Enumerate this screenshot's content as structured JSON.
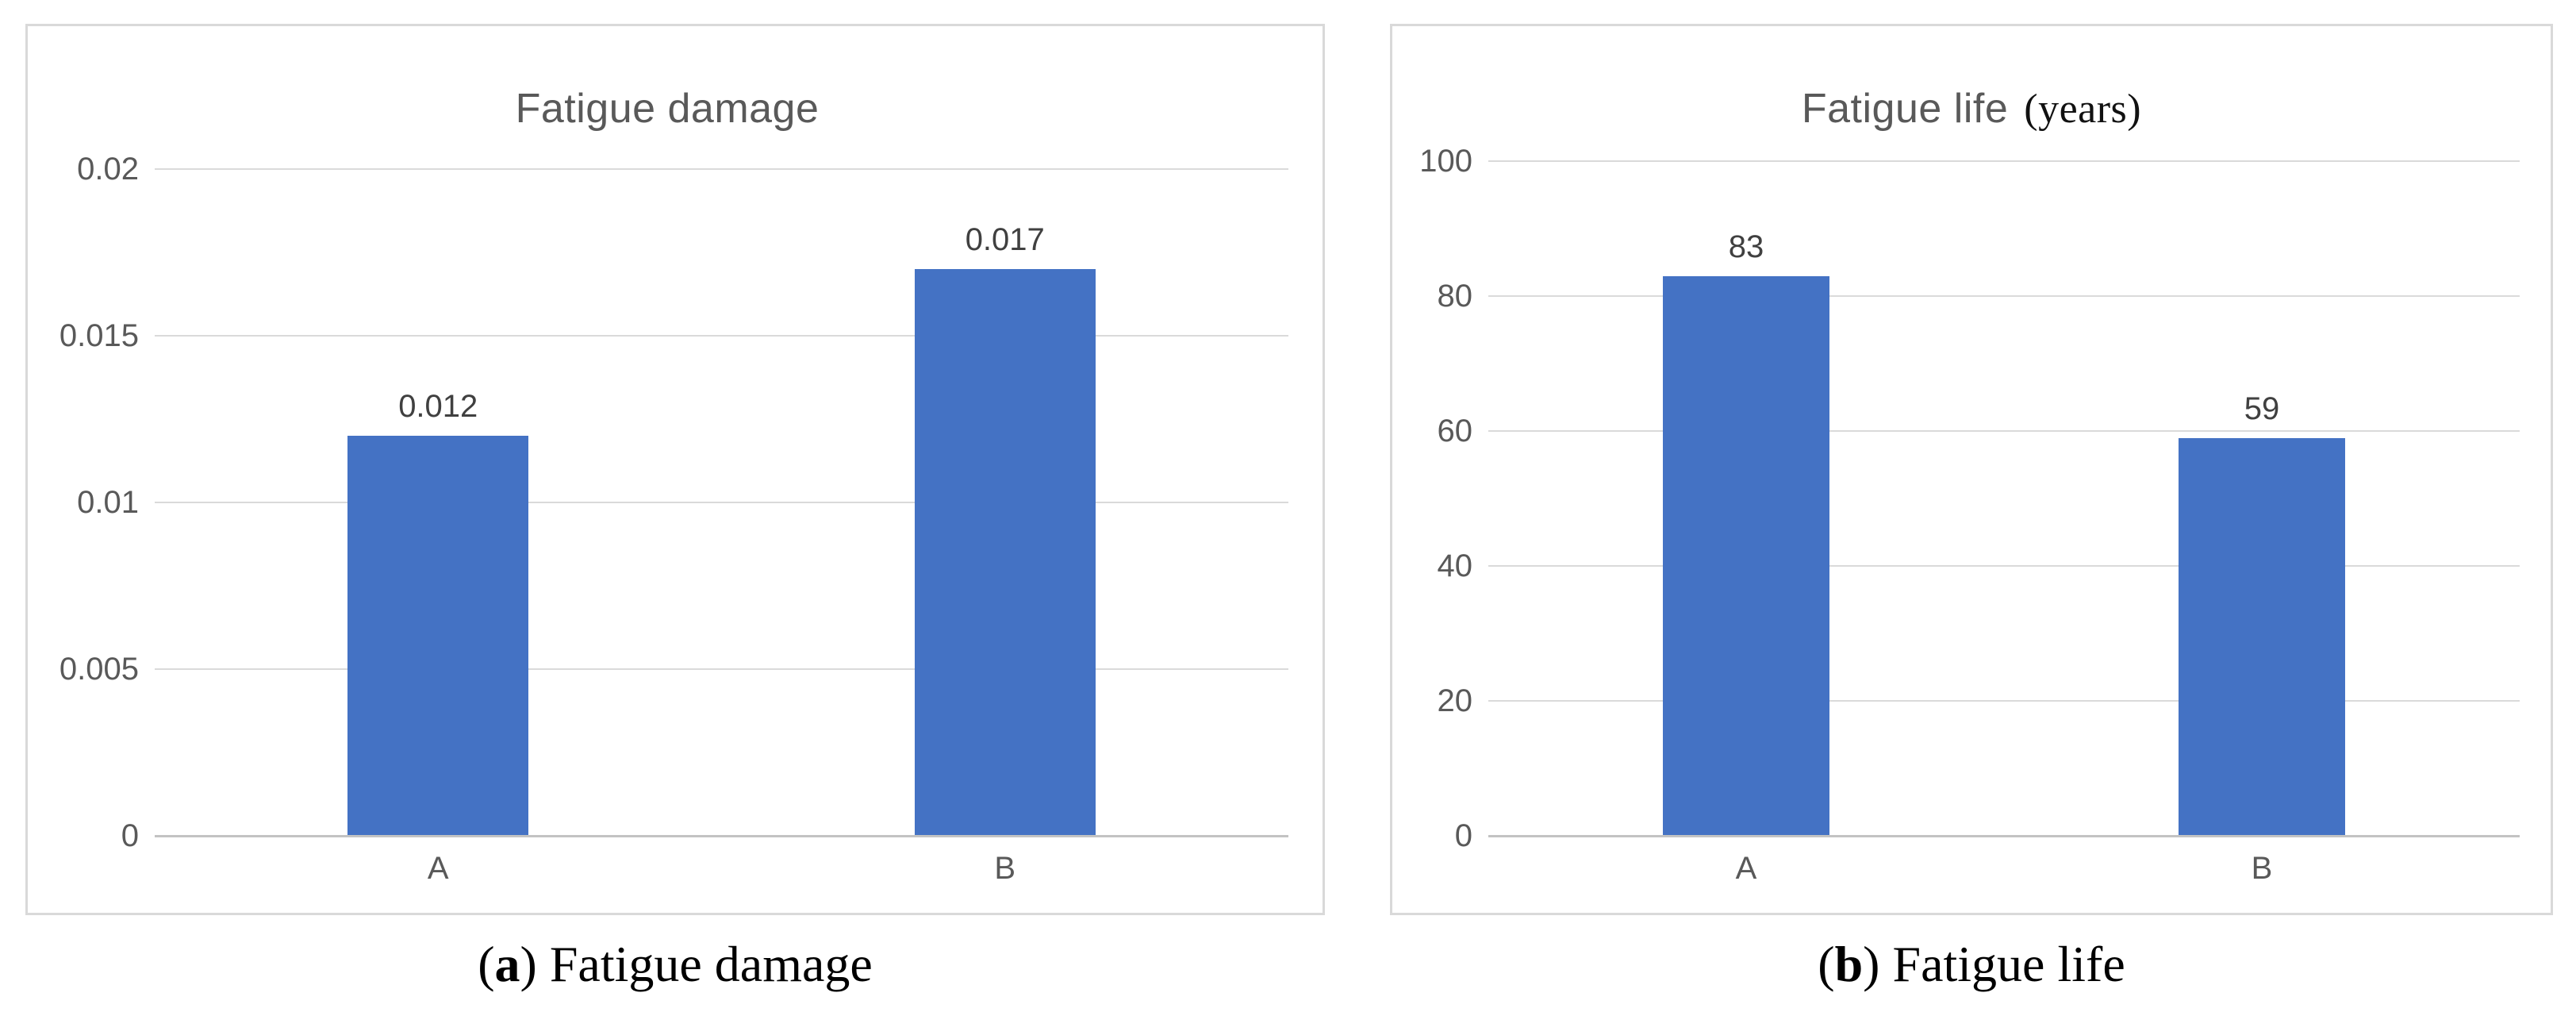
{
  "chart_data": [
    {
      "type": "bar",
      "title": "Fatigue damage",
      "title_suffix": "",
      "categories": [
        "A",
        "B"
      ],
      "values": [
        0.012,
        0.017
      ],
      "data_labels": [
        "0.012",
        "0.017"
      ],
      "ylim": [
        0,
        0.02
      ],
      "yticks": [
        {
          "value": 0,
          "label": "0"
        },
        {
          "value": 0.005,
          "label": "0.005"
        },
        {
          "value": 0.01,
          "label": "0.01"
        },
        {
          "value": 0.015,
          "label": "0.015"
        },
        {
          "value": 0.02,
          "label": "0.02"
        }
      ],
      "grid": true,
      "legend": "none",
      "caption": {
        "pre": "(",
        "letter": "a",
        "rest": ") Fatigue damage"
      }
    },
    {
      "type": "bar",
      "title": "Fatigue life",
      "title_suffix": "(years)",
      "categories": [
        "A",
        "B"
      ],
      "values": [
        83,
        59
      ],
      "data_labels": [
        "83",
        "59"
      ],
      "ylim": [
        0,
        100
      ],
      "yticks": [
        {
          "value": 0,
          "label": "0"
        },
        {
          "value": 20,
          "label": "20"
        },
        {
          "value": 40,
          "label": "40"
        },
        {
          "value": 60,
          "label": "60"
        },
        {
          "value": 80,
          "label": "80"
        },
        {
          "value": 100,
          "label": "100"
        }
      ],
      "grid": true,
      "legend": "none",
      "caption": {
        "pre": "(",
        "letter": "b",
        "rest": ") Fatigue life"
      }
    }
  ],
  "colors": {
    "bar": "#4472C4",
    "gridline": "#dadada",
    "axis_line": "#c3c3c3",
    "tick_text": "#595959",
    "title_text": "#595959",
    "data_label_text": "#404040",
    "panel_border": "#d9d9d9",
    "caption_text": "#000000"
  }
}
